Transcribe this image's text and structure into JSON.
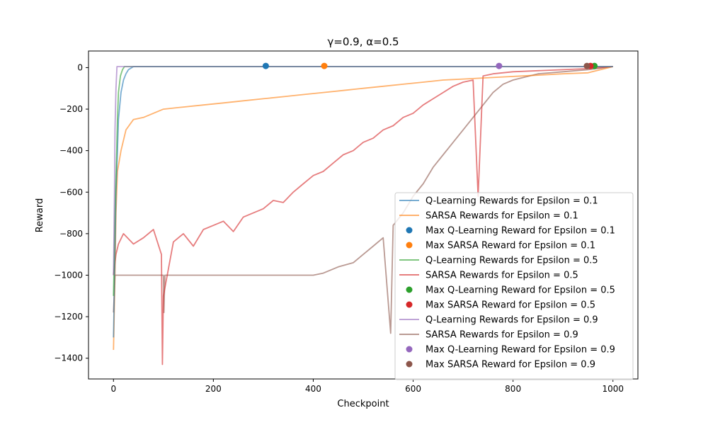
{
  "chart_data": {
    "type": "line",
    "title": "γ=0.9, α=0.5",
    "xlabel": "Checkpoint",
    "ylabel": "Reward",
    "xlim": [
      -50,
      1050
    ],
    "ylim": [
      -1500,
      80
    ],
    "xticks": [
      0,
      200,
      400,
      600,
      800,
      1000
    ],
    "yticks": [
      0,
      -200,
      -400,
      -600,
      -800,
      -1000,
      -1200,
      -1400
    ],
    "grid": false,
    "legend_position": "lower-right",
    "legend": [
      {
        "label": "Q-Learning Rewards for Epsilon = 0.1",
        "kind": "line",
        "color": "#1f77b4"
      },
      {
        "label": "SARSA Rewards for Epsilon = 0.1",
        "kind": "line",
        "color": "#ff7f0e"
      },
      {
        "label": "Max Q-Learning Reward for Epsilon = 0.1",
        "kind": "marker",
        "color": "#1f77b4"
      },
      {
        "label": "Max SARSA Reward for Epsilon = 0.1",
        "kind": "marker",
        "color": "#ff7f0e"
      },
      {
        "label": "Q-Learning Rewards for Epsilon = 0.5",
        "kind": "line",
        "color": "#2ca02c"
      },
      {
        "label": "SARSA Rewards for Epsilon = 0.5",
        "kind": "line",
        "color": "#d62728"
      },
      {
        "label": "Max Q-Learning Reward for Epsilon = 0.5",
        "kind": "marker",
        "color": "#2ca02c"
      },
      {
        "label": "Max SARSA Reward for Epsilon = 0.5",
        "kind": "marker",
        "color": "#d62728"
      },
      {
        "label": "Q-Learning Rewards for Epsilon = 0.9",
        "kind": "line",
        "color": "#9467bd"
      },
      {
        "label": "SARSA Rewards for Epsilon = 0.9",
        "kind": "line",
        "color": "#8c564b"
      },
      {
        "label": "Max Q-Learning Reward for Epsilon = 0.9",
        "kind": "marker",
        "color": "#9467bd"
      },
      {
        "label": "Max SARSA Reward for Epsilon = 0.9",
        "kind": "marker",
        "color": "#8c564b"
      }
    ],
    "series": [
      {
        "name": "SARSA Rewards for Epsilon = 0.9",
        "color": "#8c564b",
        "points": [
          [
            0,
            -1180
          ],
          [
            3,
            -1000
          ],
          [
            6,
            -1000
          ],
          [
            40,
            -1000
          ],
          [
            100,
            -1000
          ],
          [
            101,
            -1180
          ],
          [
            103,
            -1000
          ],
          [
            200,
            -1000
          ],
          [
            300,
            -1000
          ],
          [
            400,
            -1000
          ],
          [
            420,
            -990
          ],
          [
            450,
            -960
          ],
          [
            480,
            -940
          ],
          [
            500,
            -900
          ],
          [
            520,
            -860
          ],
          [
            540,
            -820
          ],
          [
            555,
            -1280
          ],
          [
            560,
            -760
          ],
          [
            580,
            -700
          ],
          [
            600,
            -620
          ],
          [
            620,
            -560
          ],
          [
            640,
            -480
          ],
          [
            660,
            -420
          ],
          [
            680,
            -360
          ],
          [
            700,
            -300
          ],
          [
            720,
            -240
          ],
          [
            740,
            -180
          ],
          [
            760,
            -120
          ],
          [
            780,
            -80
          ],
          [
            800,
            -60
          ],
          [
            850,
            -30
          ],
          [
            900,
            -20
          ],
          [
            950,
            -10
          ],
          [
            1000,
            5
          ]
        ]
      },
      {
        "name": "SARSA Rewards for Epsilon = 0.5",
        "color": "#d62728",
        "points": [
          [
            0,
            -1000
          ],
          [
            5,
            -900
          ],
          [
            10,
            -850
          ],
          [
            20,
            -800
          ],
          [
            40,
            -850
          ],
          [
            60,
            -820
          ],
          [
            80,
            -780
          ],
          [
            96,
            -900
          ],
          [
            98,
            -1430
          ],
          [
            100,
            -1100
          ],
          [
            120,
            -840
          ],
          [
            140,
            -800
          ],
          [
            160,
            -860
          ],
          [
            180,
            -780
          ],
          [
            200,
            -760
          ],
          [
            220,
            -740
          ],
          [
            240,
            -790
          ],
          [
            260,
            -720
          ],
          [
            280,
            -700
          ],
          [
            300,
            -680
          ],
          [
            320,
            -640
          ],
          [
            340,
            -650
          ],
          [
            360,
            -600
          ],
          [
            380,
            -560
          ],
          [
            400,
            -520
          ],
          [
            420,
            -500
          ],
          [
            440,
            -460
          ],
          [
            460,
            -420
          ],
          [
            480,
            -400
          ],
          [
            500,
            -360
          ],
          [
            520,
            -340
          ],
          [
            540,
            -300
          ],
          [
            560,
            -280
          ],
          [
            580,
            -240
          ],
          [
            600,
            -220
          ],
          [
            620,
            -180
          ],
          [
            640,
            -150
          ],
          [
            660,
            -120
          ],
          [
            680,
            -90
          ],
          [
            700,
            -70
          ],
          [
            720,
            -60
          ],
          [
            730,
            -620
          ],
          [
            740,
            -40
          ],
          [
            760,
            -30
          ],
          [
            800,
            -20
          ],
          [
            850,
            -15
          ],
          [
            900,
            -10
          ],
          [
            950,
            -5
          ],
          [
            1000,
            5
          ]
        ]
      },
      {
        "name": "SARSA Rewards for Epsilon = 0.1",
        "color": "#ff7f0e",
        "points": [
          [
            0,
            -1360
          ],
          [
            3,
            -1000
          ],
          [
            5,
            -700
          ],
          [
            8,
            -500
          ],
          [
            15,
            -400
          ],
          [
            25,
            -300
          ],
          [
            40,
            -250
          ],
          [
            60,
            -240
          ],
          [
            80,
            -220
          ],
          [
            100,
            -200
          ],
          [
            140,
            -190
          ],
          [
            180,
            -180
          ],
          [
            220,
            -170
          ],
          [
            260,
            -160
          ],
          [
            300,
            -150
          ],
          [
            340,
            -140
          ],
          [
            380,
            -130
          ],
          [
            420,
            -120
          ],
          [
            460,
            -110
          ],
          [
            500,
            -100
          ],
          [
            540,
            -90
          ],
          [
            580,
            -80
          ],
          [
            620,
            -70
          ],
          [
            660,
            -60
          ],
          [
            700,
            -55
          ],
          [
            740,
            -50
          ],
          [
            780,
            -45
          ],
          [
            820,
            -40
          ],
          [
            860,
            -35
          ],
          [
            900,
            -30
          ],
          [
            950,
            -25
          ],
          [
            1000,
            5
          ]
        ]
      },
      {
        "name": "Q-Learning Rewards for Epsilon = 0.1",
        "color": "#1f77b4",
        "points": [
          [
            0,
            -1300
          ],
          [
            3,
            -900
          ],
          [
            5,
            -600
          ],
          [
            8,
            -400
          ],
          [
            10,
            -250
          ],
          [
            15,
            -120
          ],
          [
            20,
            -60
          ],
          [
            25,
            -30
          ],
          [
            30,
            -10
          ],
          [
            40,
            5
          ],
          [
            1000,
            5
          ]
        ]
      },
      {
        "name": "Q-Learning Rewards for Epsilon = 0.5",
        "color": "#2ca02c",
        "points": [
          [
            0,
            -1100
          ],
          [
            3,
            -700
          ],
          [
            6,
            -450
          ],
          [
            8,
            -250
          ],
          [
            10,
            -120
          ],
          [
            14,
            -40
          ],
          [
            18,
            -10
          ],
          [
            22,
            5
          ],
          [
            1000,
            5
          ]
        ]
      },
      {
        "name": "Q-Learning Rewards for Epsilon = 0.9",
        "color": "#9467bd",
        "points": [
          [
            0,
            -1000
          ],
          [
            2,
            -600
          ],
          [
            3,
            -300
          ],
          [
            5,
            -100
          ],
          [
            7,
            5
          ],
          [
            1000,
            5
          ]
        ]
      }
    ],
    "max_points": [
      {
        "name": "Max Q-Learning Reward for Epsilon = 0.1",
        "color": "#1f77b4",
        "x": 305,
        "y": 8
      },
      {
        "name": "Max SARSA Reward for Epsilon = 0.1",
        "color": "#ff7f0e",
        "x": 422,
        "y": 8
      },
      {
        "name": "Max Q-Learning Reward for Epsilon = 0.5",
        "color": "#2ca02c",
        "x": 963,
        "y": 8
      },
      {
        "name": "Max SARSA Reward for Epsilon = 0.5",
        "color": "#d62728",
        "x": 955,
        "y": 8
      },
      {
        "name": "Max Q-Learning Reward for Epsilon = 0.9",
        "color": "#9467bd",
        "x": 772,
        "y": 8
      },
      {
        "name": "Max SARSA Reward for Epsilon = 0.9",
        "color": "#8c564b",
        "x": 948,
        "y": 8
      }
    ]
  }
}
